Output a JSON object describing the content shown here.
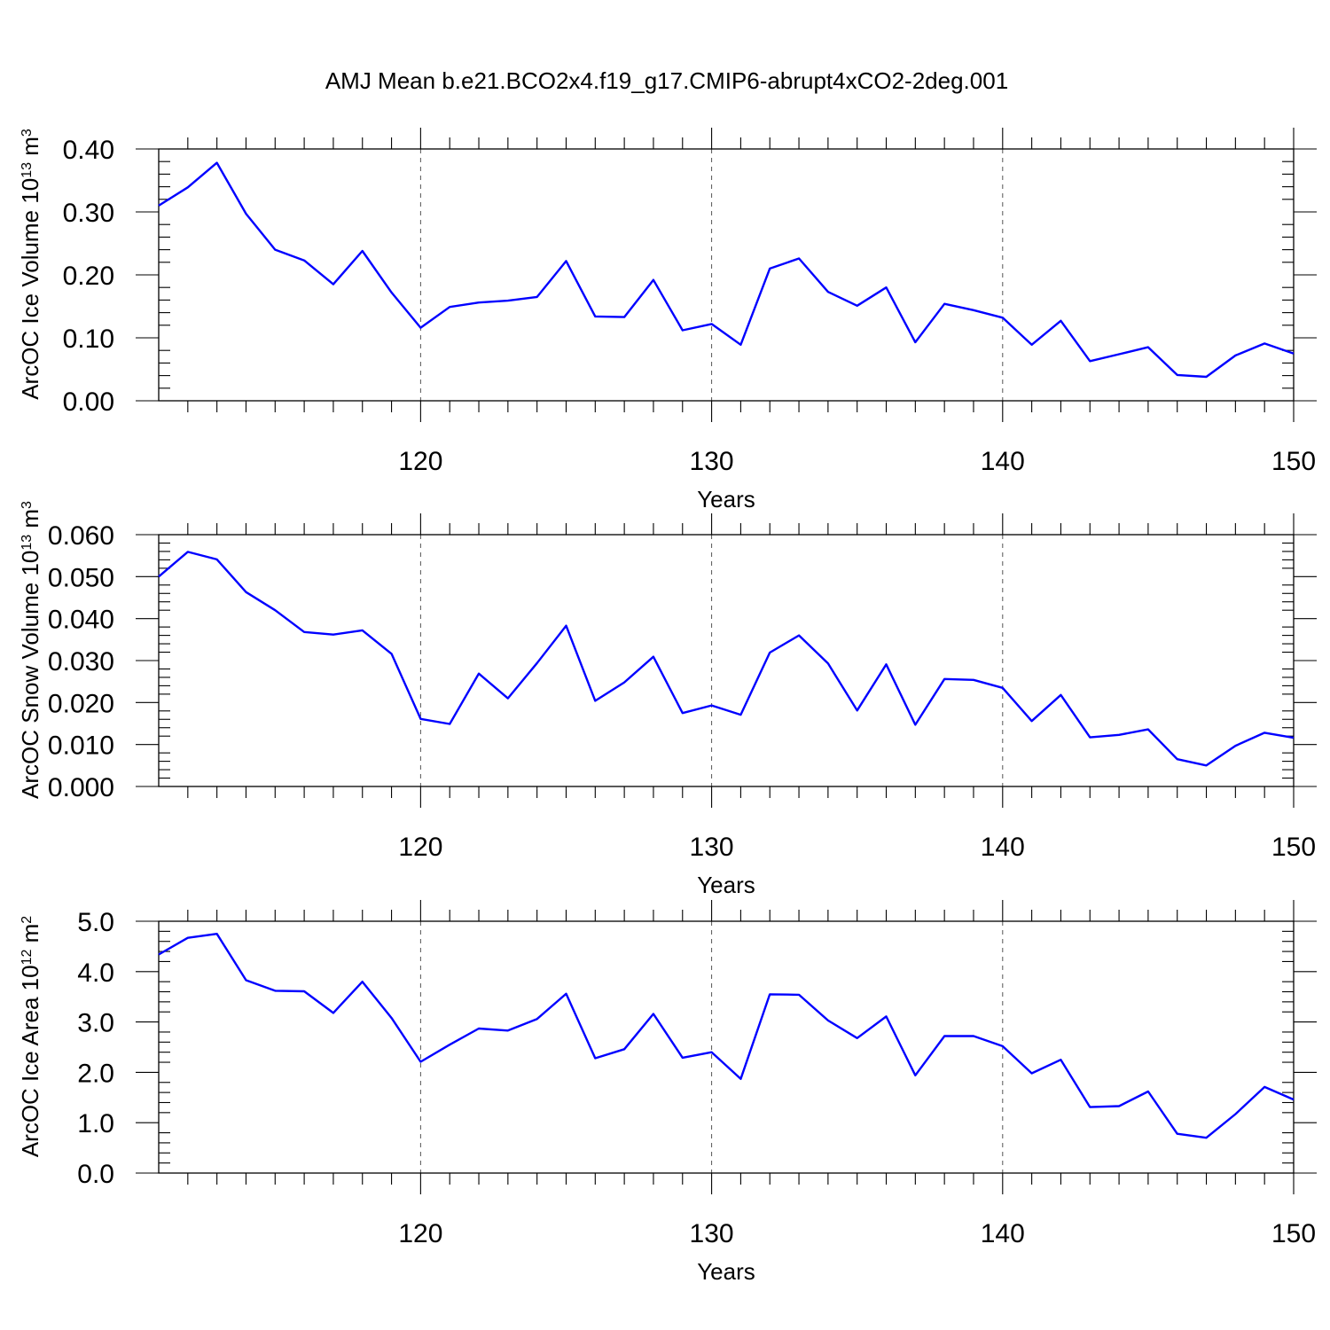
{
  "title": "AMJ Mean b.e21.BCO2x4.f19_g17.CMIP6-abrupt4xCO2-2deg.001",
  "chart_data": [
    {
      "type": "line",
      "ylabel": "ArcOC Ice Volume 10",
      "ylabel_exp": "13",
      "ylabel_unit": " m",
      "ylabel_unit_exp": "3",
      "xlabel": "Years",
      "xlim": [
        111,
        150
      ],
      "ylim": [
        0.0,
        0.4
      ],
      "x_ticks": [
        120,
        130,
        140,
        150
      ],
      "x_tick_labels": [
        "120",
        "130",
        "140",
        "150"
      ],
      "y_ticks": [
        0.0,
        0.1,
        0.2,
        0.3,
        0.4
      ],
      "y_tick_labels": [
        "0.00",
        "0.10",
        "0.20",
        "0.30",
        "0.40"
      ],
      "grid_x": [
        120,
        130,
        140
      ],
      "color": "#0000ff",
      "x": [
        111,
        112,
        113,
        114,
        115,
        116,
        117,
        118,
        119,
        120,
        121,
        122,
        123,
        124,
        125,
        126,
        127,
        128,
        129,
        130,
        131,
        132,
        133,
        134,
        135,
        136,
        137,
        138,
        139,
        140,
        141,
        142,
        143,
        144,
        145,
        146,
        147,
        148,
        149,
        150
      ],
      "values": [
        0.31,
        0.339,
        0.378,
        0.297,
        0.24,
        0.223,
        0.185,
        0.238,
        0.172,
        0.116,
        0.149,
        0.156,
        0.159,
        0.165,
        0.222,
        0.134,
        0.133,
        0.192,
        0.112,
        0.122,
        0.089,
        0.21,
        0.226,
        0.173,
        0.151,
        0.18,
        0.093,
        0.154,
        0.144,
        0.132,
        0.089,
        0.127,
        0.063,
        0.074,
        0.085,
        0.041,
        0.038,
        0.072,
        0.091,
        0.075
      ]
    },
    {
      "type": "line",
      "ylabel": "ArcOC Snow Volume 10",
      "ylabel_exp": "13",
      "ylabel_unit": " m",
      "ylabel_unit_exp": "3",
      "xlabel": "Years",
      "xlim": [
        111,
        150
      ],
      "ylim": [
        0.0,
        0.06
      ],
      "x_ticks": [
        120,
        130,
        140,
        150
      ],
      "x_tick_labels": [
        "120",
        "130",
        "140",
        "150"
      ],
      "y_ticks": [
        0.0,
        0.01,
        0.02,
        0.03,
        0.04,
        0.05,
        0.06
      ],
      "y_tick_labels": [
        "0.000",
        "0.010",
        "0.020",
        "0.030",
        "0.040",
        "0.050",
        "0.060"
      ],
      "grid_x": [
        120,
        130,
        140
      ],
      "color": "#0000ff",
      "x": [
        111,
        112,
        113,
        114,
        115,
        116,
        117,
        118,
        119,
        120,
        121,
        122,
        123,
        124,
        125,
        126,
        127,
        128,
        129,
        130,
        131,
        132,
        133,
        134,
        135,
        136,
        137,
        138,
        139,
        140,
        141,
        142,
        143,
        144,
        145,
        146,
        147,
        148,
        149,
        150
      ],
      "values": [
        0.05,
        0.0559,
        0.0541,
        0.0463,
        0.042,
        0.0368,
        0.0362,
        0.0372,
        0.0316,
        0.0161,
        0.0149,
        0.0269,
        0.021,
        0.0294,
        0.0383,
        0.0204,
        0.0248,
        0.0309,
        0.0175,
        0.0193,
        0.0171,
        0.0319,
        0.036,
        0.0293,
        0.0181,
        0.0291,
        0.0147,
        0.0256,
        0.0254,
        0.0235,
        0.0156,
        0.0218,
        0.0117,
        0.0123,
        0.0136,
        0.0065,
        0.005,
        0.0097,
        0.0128,
        0.0116
      ]
    },
    {
      "type": "line",
      "ylabel": "ArcOC Ice Area 10",
      "ylabel_exp": "12",
      "ylabel_unit": " m",
      "ylabel_unit_exp": "2",
      "xlabel": "Years",
      "xlim": [
        111,
        150
      ],
      "ylim": [
        0.0,
        5.0
      ],
      "x_ticks": [
        120,
        130,
        140,
        150
      ],
      "x_tick_labels": [
        "120",
        "130",
        "140",
        "150"
      ],
      "y_ticks": [
        0.0,
        1.0,
        2.0,
        3.0,
        4.0,
        5.0
      ],
      "y_tick_labels": [
        "0.0",
        "1.0",
        "2.0",
        "3.0",
        "4.0",
        "5.0"
      ],
      "grid_x": [
        120,
        130,
        140
      ],
      "color": "#0000ff",
      "x": [
        111,
        112,
        113,
        114,
        115,
        116,
        117,
        118,
        119,
        120,
        121,
        122,
        123,
        124,
        125,
        126,
        127,
        128,
        129,
        130,
        131,
        132,
        133,
        134,
        135,
        136,
        137,
        138,
        139,
        140,
        141,
        142,
        143,
        144,
        145,
        146,
        147,
        148,
        149,
        150
      ],
      "values": [
        4.34,
        4.67,
        4.75,
        3.83,
        3.62,
        3.61,
        3.18,
        3.8,
        3.08,
        2.21,
        2.55,
        2.87,
        2.83,
        3.06,
        3.56,
        2.28,
        2.46,
        3.16,
        2.29,
        2.4,
        1.87,
        3.55,
        3.54,
        3.03,
        2.68,
        3.11,
        1.94,
        2.72,
        2.72,
        2.52,
        1.98,
        2.25,
        1.31,
        1.33,
        1.62,
        0.78,
        0.7,
        1.17,
        1.71,
        1.46
      ]
    }
  ]
}
